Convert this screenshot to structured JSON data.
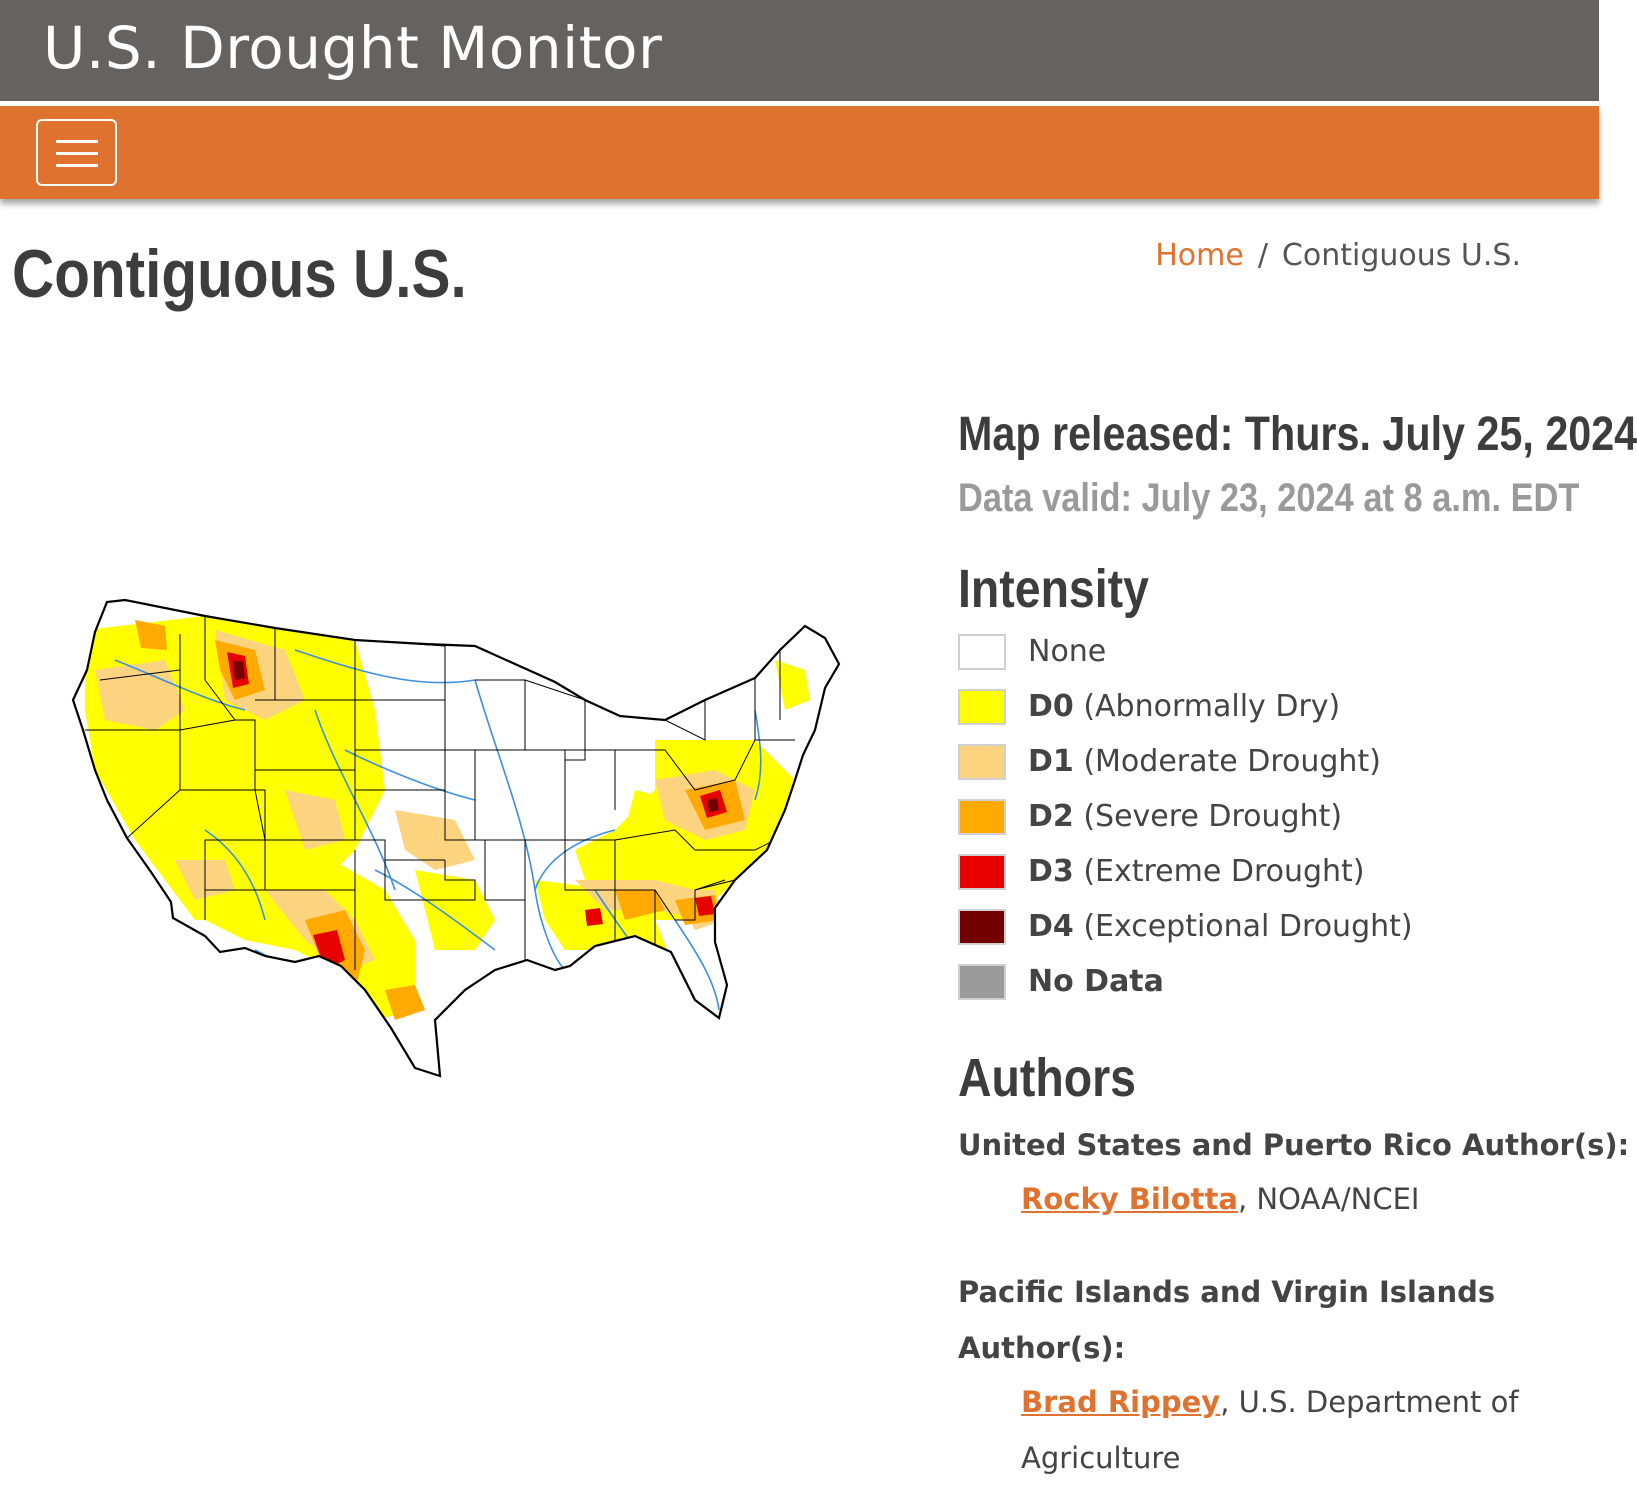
{
  "header": {
    "site_title": "U.S. Drought Monitor"
  },
  "nav": {
    "menu_icon": "hamburger-icon"
  },
  "page": {
    "title": "Contiguous U.S."
  },
  "breadcrumb": {
    "home": "Home",
    "separator": "/",
    "current": "Contiguous U.S."
  },
  "map_info": {
    "released": "Map released: Thurs. July 25, 2024",
    "valid": "Data valid: July 23, 2024 at 8 a.m. EDT"
  },
  "legend": {
    "heading": "Intensity",
    "items": [
      {
        "code": "",
        "label": "None",
        "color": "#ffffff"
      },
      {
        "code": "D0",
        "label": "(Abnormally Dry)",
        "color": "#ffff00"
      },
      {
        "code": "D1",
        "label": "(Moderate Drought)",
        "color": "#fcd37f"
      },
      {
        "code": "D2",
        "label": "(Severe Drought)",
        "color": "#ffaa00"
      },
      {
        "code": "D3",
        "label": "(Extreme Drought)",
        "color": "#e60000"
      },
      {
        "code": "D4",
        "label": "(Exceptional Drought)",
        "color": "#730000"
      },
      {
        "code": "",
        "label": "No Data",
        "color": "#9b9b9b"
      }
    ]
  },
  "authors": {
    "heading": "Authors",
    "us_heading": "United States and Puerto Rico Author(s):",
    "us_name": "Rocky Bilotta",
    "us_org": ", NOAA/NCEI",
    "pacific_heading": "Pacific Islands and Virgin Islands Author(s):",
    "pacific_name": "Brad Rippey",
    "pacific_org": ", U.S. Department of Agriculture"
  },
  "colors": {
    "header_gray": "#656260",
    "nav_orange": "#e07230",
    "link_orange": "#e07230"
  }
}
